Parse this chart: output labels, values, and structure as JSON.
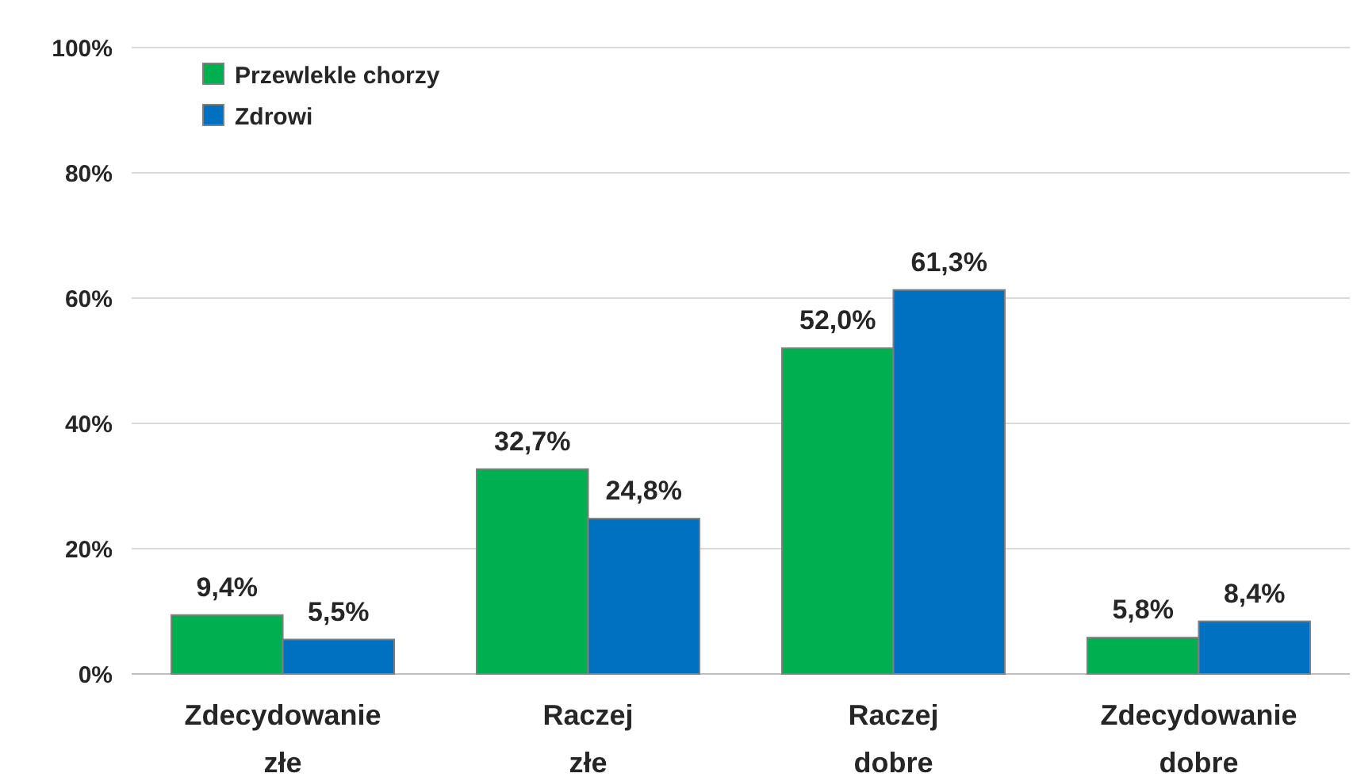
{
  "chart_data": {
    "type": "bar",
    "categories": [
      "Zdecydowanie złe",
      "Raczej złe",
      "Raczej dobre",
      "Zdecydowanie dobre"
    ],
    "series": [
      {
        "name": "Przewlekle chorzy",
        "color": "#00b050",
        "values": [
          9.4,
          32.7,
          52.0,
          5.8
        ],
        "value_labels": [
          "9,4%",
          "32,7%",
          "52,0%",
          "5,8%"
        ]
      },
      {
        "name": "Zdrowi",
        "color": "#0070c0",
        "values": [
          5.5,
          24.8,
          61.3,
          8.4
        ],
        "value_labels": [
          "5,5%",
          "24,8%",
          "61,3%",
          "8,4%"
        ]
      }
    ],
    "ylim": [
      0,
      100
    ],
    "yticks": [
      {
        "value": 0,
        "label": "0%"
      },
      {
        "value": 20,
        "label": "20%"
      },
      {
        "value": 40,
        "label": "40%"
      },
      {
        "value": 60,
        "label": "60%"
      },
      {
        "value": 80,
        "label": "80%"
      },
      {
        "value": 100,
        "label": "100%"
      }
    ],
    "grid": "y",
    "legend": "top left"
  }
}
